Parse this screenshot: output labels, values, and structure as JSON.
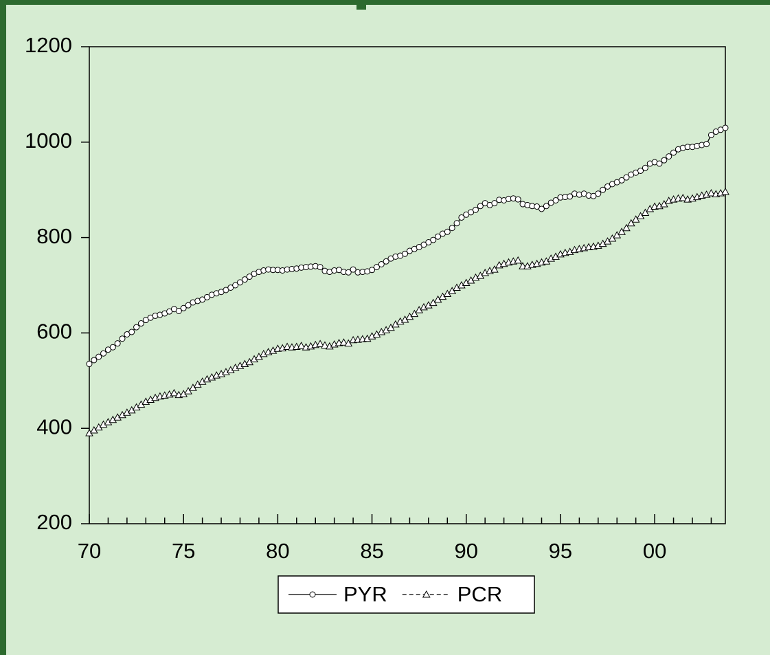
{
  "chart_data": {
    "type": "line",
    "categories": [
      "70",
      null,
      null,
      null,
      null,
      null,
      null,
      null,
      null,
      null,
      null,
      null,
      null,
      null,
      null,
      null,
      null,
      null,
      null,
      null,
      "75",
      null,
      null,
      null,
      null,
      null,
      null,
      null,
      null,
      null,
      null,
      null,
      null,
      null,
      null,
      null,
      null,
      null,
      null,
      null,
      "80",
      null,
      null,
      null,
      null,
      null,
      null,
      null,
      null,
      null,
      null,
      null,
      null,
      null,
      null,
      null,
      null,
      null,
      null,
      null,
      "85",
      null,
      null,
      null,
      null,
      null,
      null,
      null,
      null,
      null,
      null,
      null,
      null,
      null,
      null,
      null,
      null,
      null,
      null,
      null,
      "90",
      null,
      null,
      null,
      null,
      null,
      null,
      null,
      null,
      null,
      null,
      null,
      null,
      null,
      null,
      null,
      null,
      null,
      null,
      null,
      "95",
      null,
      null,
      null,
      null,
      null,
      null,
      null,
      null,
      null,
      null,
      null,
      null,
      null,
      null,
      null,
      null,
      null,
      null,
      null,
      "00",
      null,
      null,
      null,
      null,
      null,
      null,
      null,
      null,
      null,
      null,
      null,
      null,
      null,
      null,
      null
    ],
    "series": [
      {
        "name": "PYR",
        "color": "#000000",
        "marker": "circle",
        "dashed": false,
        "values": [
          535,
          543,
          550,
          557,
          565,
          570,
          578,
          588,
          597,
          602,
          612,
          620,
          627,
          632,
          636,
          638,
          641,
          645,
          650,
          646,
          652,
          658,
          664,
          667,
          670,
          675,
          680,
          683,
          686,
          690,
          695,
          700,
          706,
          712,
          718,
          724,
          728,
          731,
          733,
          732,
          732,
          731,
          733,
          734,
          735,
          737,
          738,
          739,
          740,
          738,
          730,
          728,
          731,
          732,
          728,
          727,
          733,
          727,
          728,
          729,
          732,
          738,
          744,
          750,
          756,
          760,
          762,
          766,
          772,
          776,
          780,
          785,
          790,
          795,
          802,
          808,
          812,
          820,
          830,
          842,
          848,
          853,
          858,
          866,
          872,
          868,
          872,
          879,
          878,
          881,
          882,
          880,
          870,
          868,
          866,
          865,
          860,
          866,
          873,
          878,
          884,
          885,
          886,
          892,
          890,
          892,
          888,
          887,
          892,
          900,
          907,
          912,
          916,
          920,
          926,
          932,
          936,
          940,
          946,
          955,
          958,
          955,
          962,
          970,
          978,
          985,
          988,
          990,
          990,
          992,
          994,
          996,
          1015,
          1022,
          1026,
          1030
        ]
      },
      {
        "name": "PCR",
        "color": "#000000",
        "marker": "triangle",
        "dashed": true,
        "values": [
          390,
          396,
          402,
          408,
          413,
          418,
          423,
          428,
          433,
          438,
          444,
          450,
          456,
          460,
          464,
          467,
          469,
          471,
          474,
          470,
          472,
          478,
          485,
          492,
          498,
          503,
          507,
          511,
          514,
          518,
          522,
          527,
          531,
          535,
          539,
          545,
          550,
          556,
          560,
          563,
          567,
          568,
          571,
          570,
          571,
          573,
          570,
          572,
          575,
          577,
          574,
          572,
          576,
          579,
          580,
          578,
          585,
          586,
          587,
          588,
          593,
          597,
          602,
          606,
          611,
          618,
          624,
          628,
          634,
          640,
          648,
          654,
          658,
          663,
          670,
          676,
          682,
          688,
          695,
          700,
          705,
          710,
          716,
          720,
          726,
          730,
          733,
          742,
          745,
          748,
          750,
          752,
          740,
          740,
          743,
          745,
          748,
          750,
          756,
          760,
          765,
          768,
          770,
          774,
          776,
          778,
          780,
          781,
          783,
          787,
          792,
          798,
          805,
          812,
          820,
          830,
          838,
          845,
          852,
          860,
          865,
          866,
          870,
          877,
          880,
          882,
          883,
          880,
          882,
          885,
          888,
          890,
          893,
          891,
          893,
          896
        ]
      }
    ],
    "ylim": [
      200,
      1200
    ],
    "yticks": [
      200,
      400,
      600,
      800,
      1000,
      1200
    ],
    "grid": false
  }
}
